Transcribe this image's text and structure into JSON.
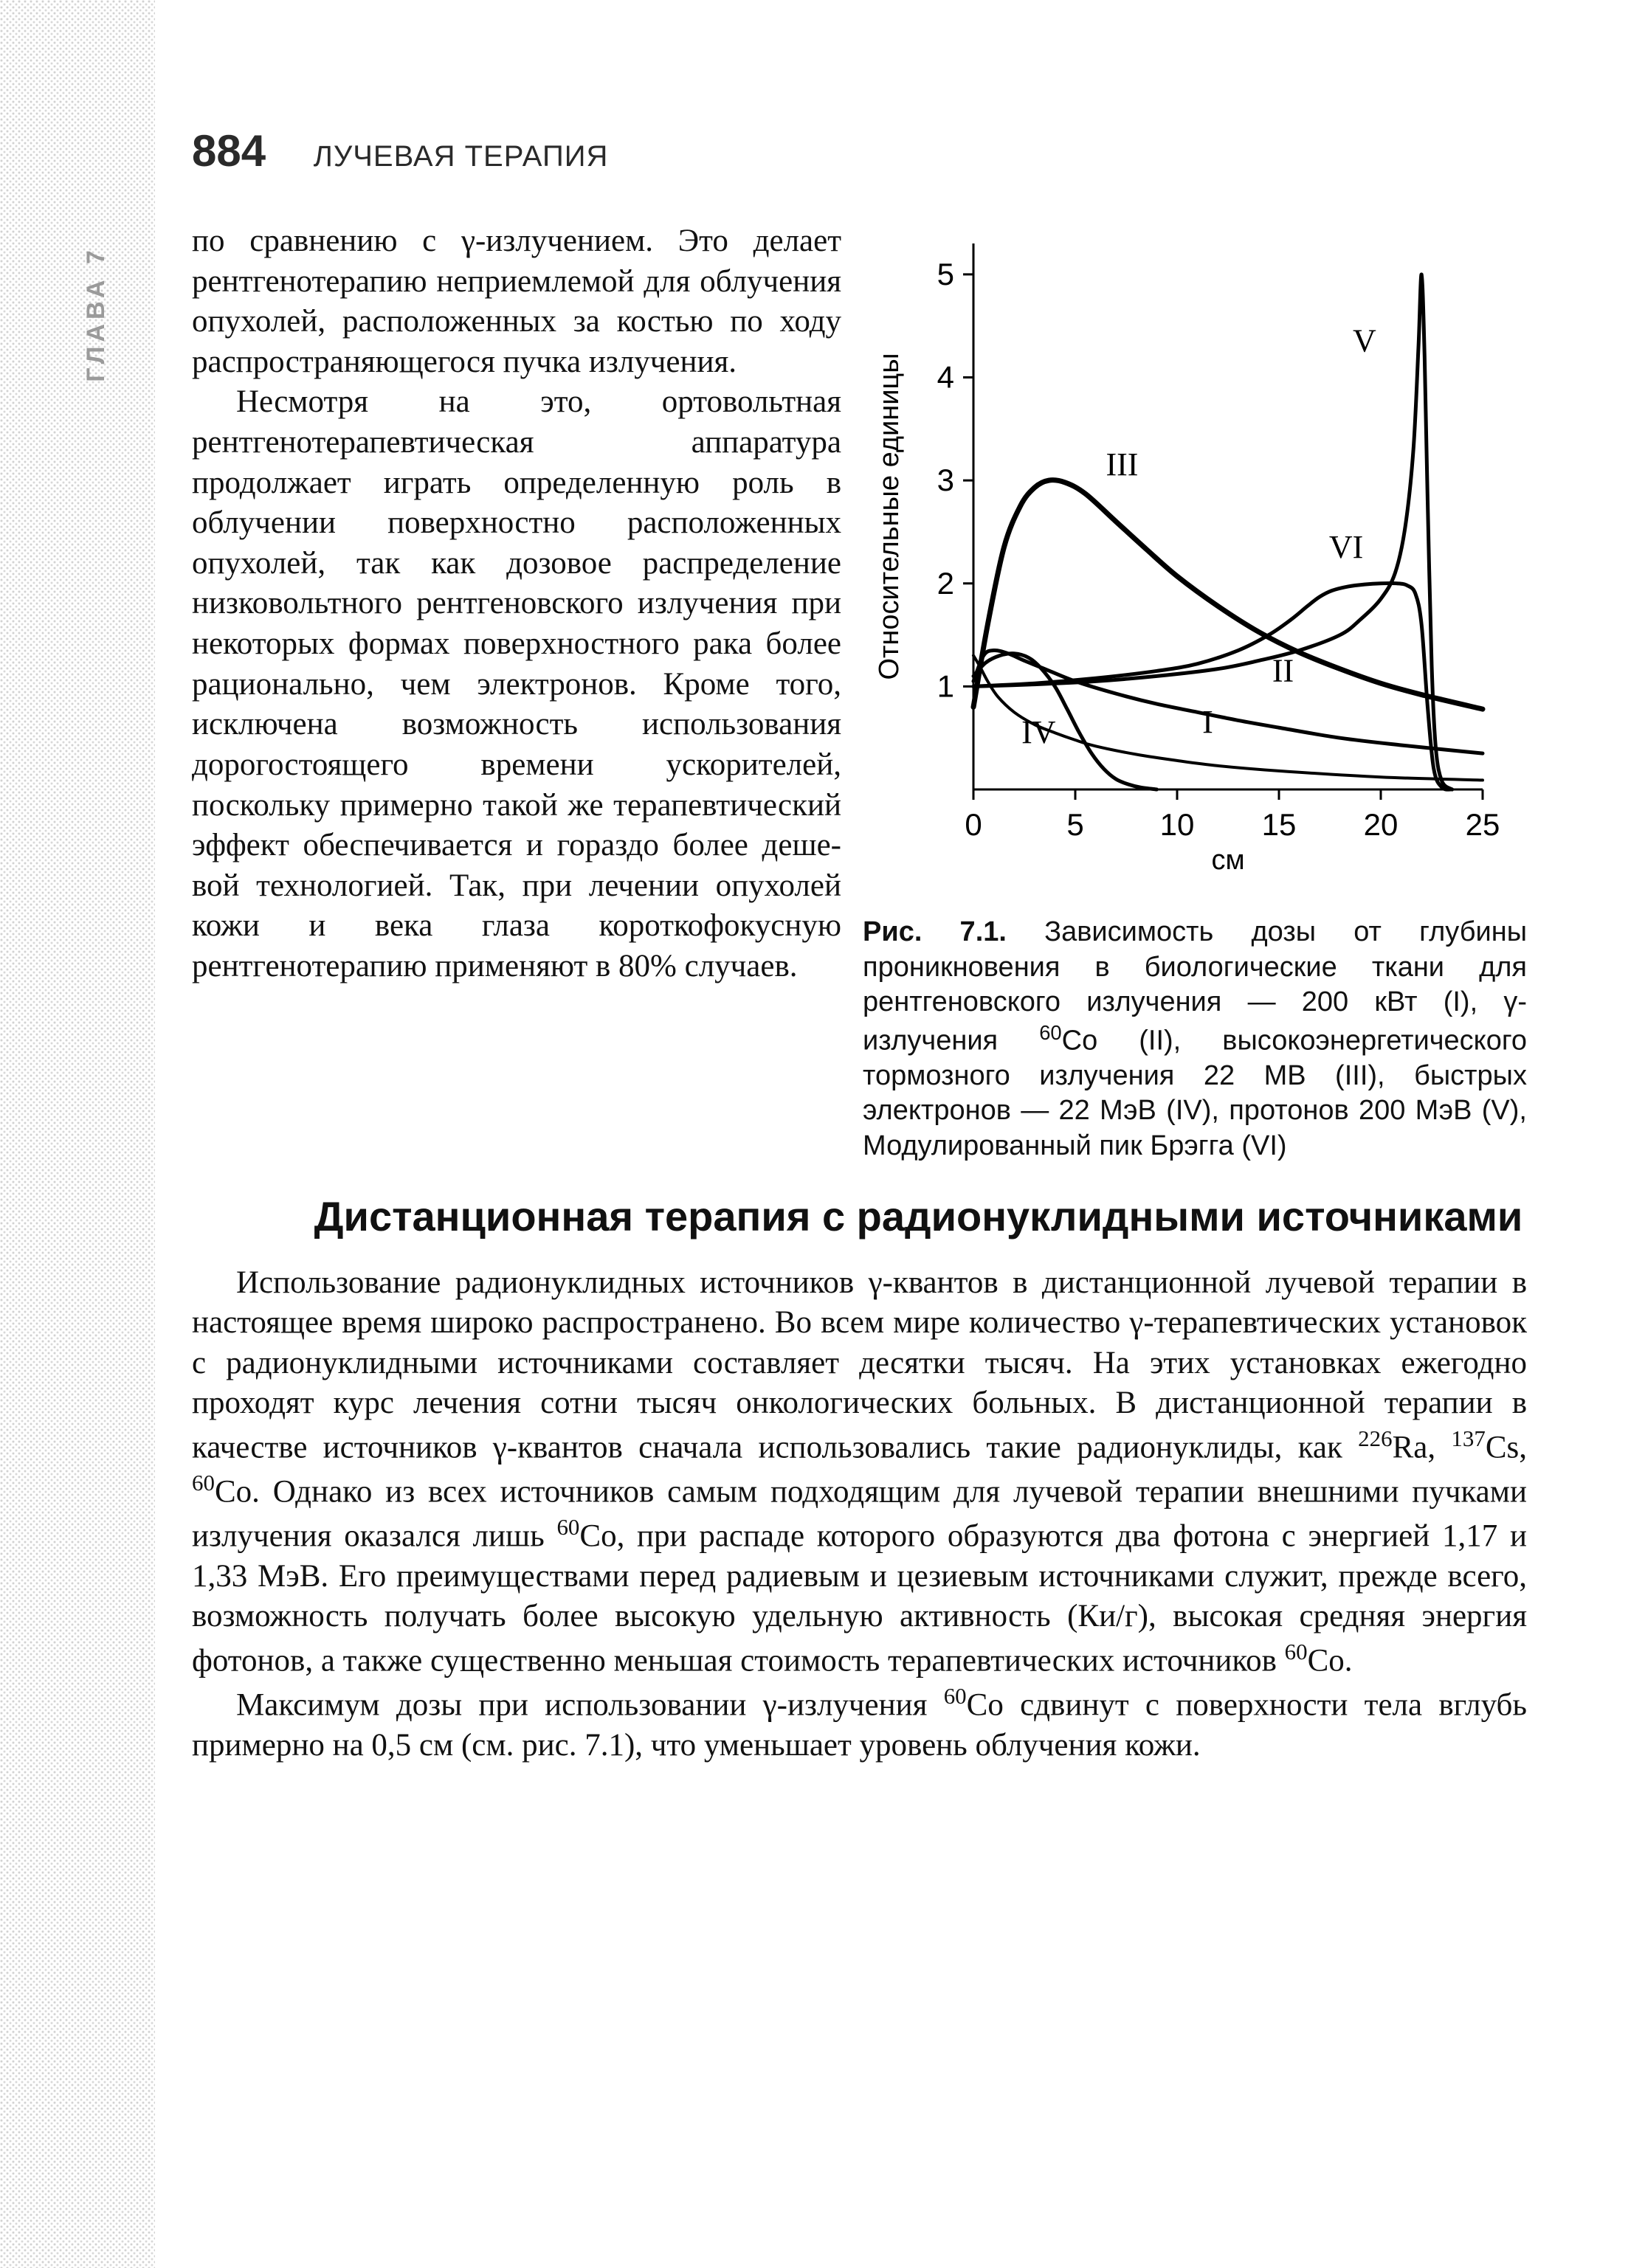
{
  "header": {
    "page_number": "884",
    "chapter": "ЛУЧЕВАЯ ТЕРАПИЯ",
    "spine_label": "ГЛАВА 7"
  },
  "paragraphs": {
    "p1": "по сравнению с γ-излучением. Это делает рентгенотерапию неприемле­мой для облучения опухолей, рас­положенных за костью по ходу рас­пространяющегося пучка излучения.",
    "p2": "Несмотря на это, ортовольтная рентгенотерапевтическая аппарату­ра продолжает играть определенную роль в облучении поверхностно рас­положенных опухолей, так как дозо­вое распределение низковольтного рентгеновского излучения при неко­торых формах поверхностного рака более рационально, чем электронов. Кроме того, исключена возможность использования дорогостоящего вре­мени ускорителей, поскольку пример­но такой же терапевтический эффект обеспечивается и гораздо более деше­вой технологией. Так, при лечении опухолей кожи и века глаза коротко­фокусную рентгенотерапию применя­ют в 80% случаев.",
    "section_title": "Дистанционная терапия с радионуклидными источниками",
    "p3_a": "Использование радионуклидных источников γ-квантов в дистанционной лучевой терапии в настоящее время широко распространено. Во всем мире количество γ-терапевтических установок с радионуклидными источниками составляет десятки тысяч. На этих установках ежегодно проходят курс лечения сотни тысяч онкологических больных. В дистанционной терапии в качестве источников γ-квантов сначала использовались такие радиону­клиды, как ",
    "p3_b": "Ra, ",
    "p3_c": "Cs, ",
    "p3_d": "Co. Однако из всех источников самым подходящим для лучевой терапии внешними пучками излучения оказался лишь ",
    "p3_e": "Co, при распаде которого образуются два фотона с энергией 1,17 и 1,33 МэВ. Его преимуществами перед радиевым и цезиевым источниками служит, прежде всего, возможность получать более высокую удельную активность (Ки/г), высокая средняя энергия фотонов, а также существенно меньшая стоимость терапевтических источников ",
    "p3_f": "Co.",
    "p4_a": "Максимум дозы при использовании γ-излучения ",
    "p4_b": "Co сдвинут с поверх­ности тела вглубь примерно на 0,5 см (см. рис. 7.1), что уменьшает уровень облучения кожи.",
    "iso_226Ra": "226",
    "iso_137Cs": "137",
    "iso_60Co": "60"
  },
  "figure": {
    "label": "Рис. 7.1.",
    "caption_a": " Зависимость дозы от глубины проникновения в биологические ткани для рентгеновского излучения — 200 кВт (I), γ-излучения ",
    "caption_b": "Co (II), высокоэнерге­тического тормозного излучения 22 МВ (III), быстрых электронов — 22 МэВ (IV), протонов 200 МэВ (V), Модулированный пик Брэгга (VI)",
    "iso_60Co": "60"
  },
  "chart": {
    "type": "line",
    "xlim": [
      0,
      25
    ],
    "ylim": [
      0,
      5.3
    ],
    "xtick_values": [
      0,
      5,
      10,
      15,
      20,
      25
    ],
    "ytick_values": [
      1,
      2,
      3,
      4,
      5
    ],
    "x_axis_label": "см",
    "y_axis_label": "Относительные единицы",
    "axis_color": "#000000",
    "axis_width": 3,
    "background_color": "#ffffff",
    "tick_fontsize": 42,
    "axis_label_fontsize": 38,
    "series_label_fontsize": 44,
    "series_label_font": "Times New Roman",
    "series": {
      "I": {
        "label": "I",
        "label_xy": [
          11.5,
          0.55
        ],
        "color": "#000000",
        "width": 4,
        "points": [
          [
            0,
            1.3
          ],
          [
            0.3,
            1.2
          ],
          [
            0.7,
            1.05
          ],
          [
            1.2,
            0.9
          ],
          [
            2,
            0.75
          ],
          [
            3,
            0.63
          ],
          [
            4,
            0.55
          ],
          [
            5,
            0.48
          ],
          [
            6,
            0.42
          ],
          [
            8,
            0.34
          ],
          [
            10,
            0.28
          ],
          [
            12,
            0.23
          ],
          [
            15,
            0.18
          ],
          [
            20,
            0.12
          ],
          [
            25,
            0.09
          ]
        ]
      },
      "II": {
        "label": "II",
        "label_xy": [
          15.2,
          1.05
        ],
        "color": "#000000",
        "width": 5,
        "points": [
          [
            0,
            1.05
          ],
          [
            0.5,
            1.3
          ],
          [
            1.0,
            1.35
          ],
          [
            1.7,
            1.32
          ],
          [
            2.5,
            1.25
          ],
          [
            3.5,
            1.17
          ],
          [
            5,
            1.05
          ],
          [
            7,
            0.93
          ],
          [
            9,
            0.83
          ],
          [
            11,
            0.75
          ],
          [
            13,
            0.67
          ],
          [
            15,
            0.6
          ],
          [
            18,
            0.5
          ],
          [
            21,
            0.43
          ],
          [
            25,
            0.35
          ]
        ]
      },
      "III": {
        "label": "III",
        "label_xy": [
          7.3,
          3.05
        ],
        "color": "#000000",
        "width": 7,
        "points": [
          [
            0,
            0.8
          ],
          [
            0.7,
            1.6
          ],
          [
            1.5,
            2.35
          ],
          [
            2.3,
            2.75
          ],
          [
            3.0,
            2.93
          ],
          [
            3.7,
            3.0
          ],
          [
            4.5,
            2.98
          ],
          [
            5.5,
            2.87
          ],
          [
            7,
            2.6
          ],
          [
            8.5,
            2.33
          ],
          [
            10,
            2.07
          ],
          [
            12,
            1.78
          ],
          [
            14,
            1.53
          ],
          [
            16,
            1.33
          ],
          [
            18,
            1.17
          ],
          [
            20,
            1.03
          ],
          [
            22,
            0.92
          ],
          [
            25,
            0.78
          ]
        ]
      },
      "IV": {
        "label": "IV",
        "label_xy": [
          3.2,
          0.45
        ],
        "color": "#000000",
        "width": 5,
        "points": [
          [
            0,
            1.1
          ],
          [
            0.6,
            1.23
          ],
          [
            1.3,
            1.3
          ],
          [
            2.0,
            1.32
          ],
          [
            2.7,
            1.28
          ],
          [
            3.3,
            1.18
          ],
          [
            4.0,
            1.0
          ],
          [
            4.6,
            0.78
          ],
          [
            5.2,
            0.55
          ],
          [
            5.8,
            0.35
          ],
          [
            6.4,
            0.2
          ],
          [
            7.0,
            0.1
          ],
          [
            7.6,
            0.05
          ],
          [
            8.2,
            0.02
          ],
          [
            9.0,
            0.0
          ]
        ]
      },
      "V": {
        "label": "V",
        "label_xy": [
          19.2,
          4.25
        ],
        "color": "#000000",
        "width": 5,
        "points": [
          [
            0,
            1.0
          ],
          [
            3,
            1.02
          ],
          [
            6,
            1.05
          ],
          [
            9,
            1.1
          ],
          [
            12,
            1.17
          ],
          [
            14,
            1.25
          ],
          [
            16,
            1.35
          ],
          [
            18,
            1.5
          ],
          [
            19,
            1.65
          ],
          [
            20,
            1.85
          ],
          [
            20.7,
            2.1
          ],
          [
            21.2,
            2.55
          ],
          [
            21.6,
            3.3
          ],
          [
            21.85,
            4.3
          ],
          [
            22.0,
            5.0
          ],
          [
            22.15,
            4.2
          ],
          [
            22.3,
            2.8
          ],
          [
            22.5,
            1.2
          ],
          [
            22.7,
            0.4
          ],
          [
            23.0,
            0.08
          ],
          [
            23.5,
            0.0
          ]
        ]
      },
      "VI": {
        "label": "VI",
        "label_xy": [
          18.3,
          2.25
        ],
        "color": "#000000",
        "width": 5,
        "points": [
          [
            0,
            1.0
          ],
          [
            3,
            1.03
          ],
          [
            6,
            1.08
          ],
          [
            9,
            1.15
          ],
          [
            11,
            1.22
          ],
          [
            13,
            1.35
          ],
          [
            14.5,
            1.5
          ],
          [
            15.6,
            1.65
          ],
          [
            16.4,
            1.78
          ],
          [
            17.0,
            1.87
          ],
          [
            17.6,
            1.93
          ],
          [
            18.4,
            1.97
          ],
          [
            19.2,
            1.99
          ],
          [
            20.0,
            2.0
          ],
          [
            20.8,
            2.0
          ],
          [
            21.3,
            1.98
          ],
          [
            21.7,
            1.9
          ],
          [
            22.0,
            1.6
          ],
          [
            22.3,
            0.8
          ],
          [
            22.6,
            0.2
          ],
          [
            23.0,
            0.02
          ],
          [
            23.5,
            0.0
          ]
        ]
      }
    }
  },
  "style": {
    "body_fontsize": 43,
    "body_font": "Georgia",
    "heading_font": "Arial",
    "text_color": "#111111",
    "page_background": "#ffffff"
  }
}
